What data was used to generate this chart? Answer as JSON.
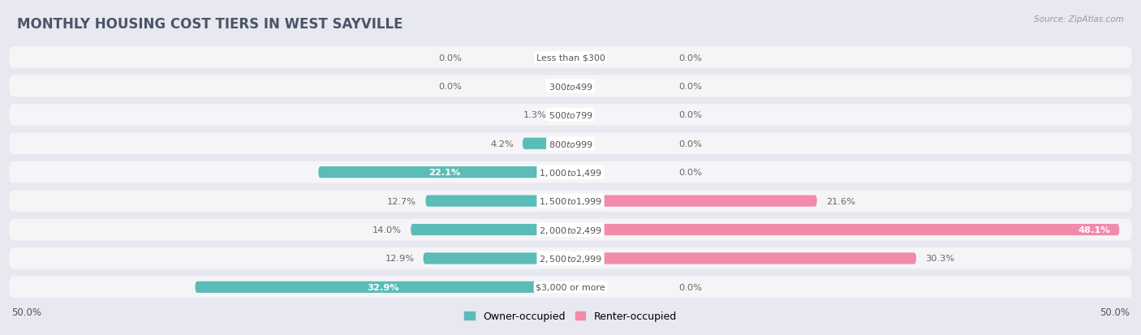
{
  "title": "MONTHLY HOUSING COST TIERS IN WEST SAYVILLE",
  "source": "Source: ZipAtlas.com",
  "categories": [
    "Less than $300",
    "$300 to $499",
    "$500 to $799",
    "$800 to $999",
    "$1,000 to $1,499",
    "$1,500 to $1,999",
    "$2,000 to $2,499",
    "$2,500 to $2,999",
    "$3,000 or more"
  ],
  "owner_values": [
    0.0,
    0.0,
    1.3,
    4.2,
    22.1,
    12.7,
    14.0,
    12.9,
    32.9
  ],
  "renter_values": [
    0.0,
    0.0,
    0.0,
    0.0,
    0.0,
    21.6,
    48.1,
    30.3,
    0.0
  ],
  "owner_color": "#5bbcb8",
  "renter_color": "#f28aaa",
  "owner_label": "Owner-occupied",
  "renter_label": "Renter-occupied",
  "background_color": "#e8e8f0",
  "row_background": "#f5f5f8",
  "title_bg": "#ffffff",
  "title_fontsize": 12,
  "axis_max": 50.0
}
